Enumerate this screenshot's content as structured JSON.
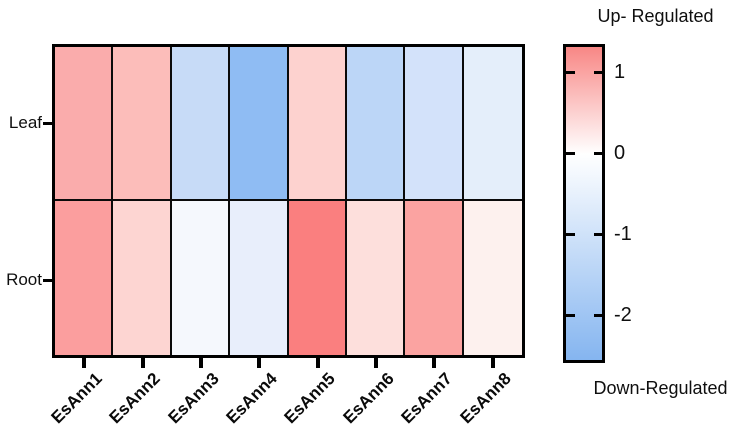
{
  "scale_legend": {
    "top_label": "Up- Regulated",
    "bottom_label": "Down-Regulated",
    "colorbar": {
      "tick_labels": [
        "1",
        "0",
        "-1",
        "-2"
      ],
      "tick_values": [
        1,
        0,
        -1,
        -2
      ],
      "gradient_top_color": "#F88785",
      "gradient_mid_color": "#FFFFFF",
      "gradient_bottom_color": "#85B5F0",
      "value_at_top": 1.35,
      "value_at_bottom": -2.59
    }
  },
  "chart_data": {
    "type": "heatmap",
    "title": "",
    "categories": [
      "EsAnn1",
      "EsAnn2",
      "EsAnn3",
      "EsAnn4",
      "EsAnn5",
      "EsAnn6",
      "EsAnn7",
      "EsAnn8"
    ],
    "rows": [
      "Leaf",
      "Root"
    ],
    "series": [
      {
        "name": "Leaf",
        "values": [
          0.9,
          0.75,
          -1.2,
          -2.4,
          0.5,
          -1.5,
          -1.0,
          -0.55
        ],
        "colors": [
          "#FAACAC",
          "#FCBDBA",
          "#C7DBF7",
          "#8FBCF3",
          "#FDD2CF",
          "#BCD6F7",
          "#D3E2FA",
          "#E4EEFA"
        ]
      },
      {
        "name": "Root",
        "values": [
          1.1,
          0.45,
          -0.2,
          -0.5,
          1.4,
          0.3,
          1.0,
          0.15
        ],
        "colors": [
          "#FB9E9E",
          "#FDD5D2",
          "#F5F8FD",
          "#E8EEFB",
          "#FA7F7F",
          "#FDDFDC",
          "#FBA3A1",
          "#FDF1EE"
        ]
      }
    ],
    "legend_position": "right",
    "colorbar_range": [
      -2.59,
      1.35
    ],
    "grid": false
  }
}
